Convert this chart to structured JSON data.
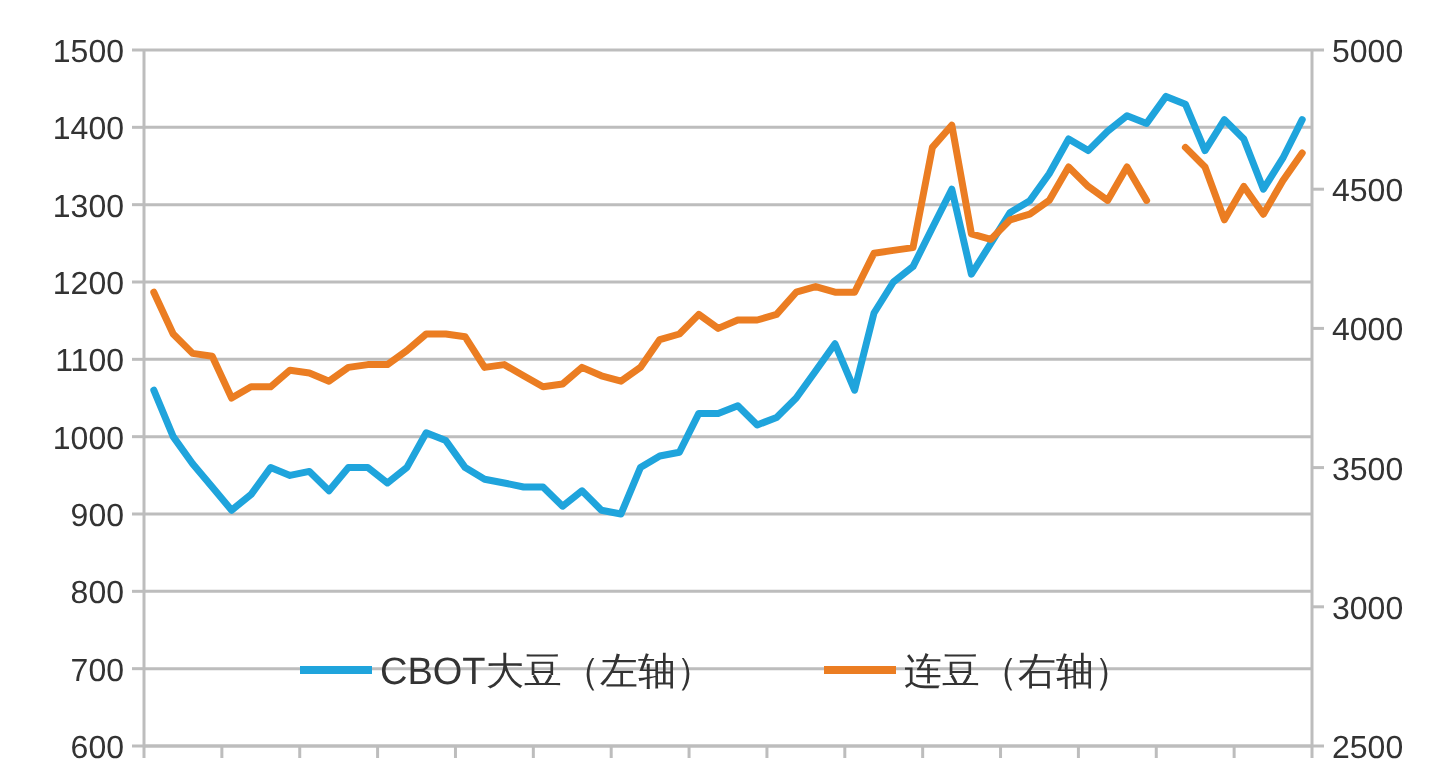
{
  "chart_data": {
    "type": "line",
    "categories": [
      null,
      null,
      null,
      null,
      null,
      null,
      null,
      null,
      null,
      null,
      null,
      null,
      null,
      null,
      null,
      null,
      null,
      null,
      null,
      null,
      null,
      null,
      null,
      null,
      null,
      null,
      null,
      null,
      null,
      null,
      null,
      null,
      null,
      null,
      null,
      null,
      null,
      null,
      null,
      null,
      null,
      null,
      null,
      null,
      null,
      null,
      null,
      null,
      null,
      null,
      null,
      null,
      null,
      null,
      null,
      null,
      null,
      null,
      null,
      null
    ],
    "series": [
      {
        "name": "CBOT大豆（左轴）",
        "color": "#1fa4dc",
        "values": [
          1060,
          1000,
          965,
          935,
          905,
          925,
          960,
          950,
          955,
          930,
          960,
          960,
          940,
          960,
          1005,
          995,
          960,
          945,
          940,
          935,
          935,
          910,
          930,
          905,
          900,
          960,
          975,
          980,
          1030,
          1030,
          1040,
          1015,
          1025,
          1050,
          1085,
          1120,
          1060,
          1160,
          1200,
          1220,
          1270,
          1320,
          1210,
          1250,
          1290,
          1305,
          1340,
          1385,
          1370,
          1395,
          1415,
          1405,
          1440,
          1430,
          1370,
          1410,
          1385,
          1320,
          1360,
          1410
        ]
      },
      {
        "name": "连豆（右轴）",
        "color": "#eb7d22",
        "axis": "y2",
        "values": [
          4130,
          3980,
          3910,
          3900,
          3750,
          3790,
          3790,
          3850,
          3840,
          3810,
          3860,
          3870,
          3870,
          3920,
          3980,
          3980,
          3970,
          3860,
          3870,
          3830,
          3790,
          3800,
          3860,
          3830,
          3810,
          3860,
          3960,
          3980,
          4050,
          4000,
          4030,
          4030,
          4050,
          4130,
          4150,
          4130,
          4130,
          4270,
          4280,
          4290,
          4650,
          4730,
          4340,
          4320,
          4390,
          4410,
          4460,
          4580,
          4510,
          4460,
          4580,
          4460,
          null,
          4650,
          4580,
          4390,
          4510,
          4410,
          4530,
          4630
        ]
      }
    ],
    "ylim": [
      600,
      1500
    ],
    "yticks": [
      600,
      700,
      800,
      900,
      1000,
      1100,
      1200,
      1300,
      1400,
      1500
    ],
    "y2lim": [
      2500,
      5000
    ],
    "y2ticks": [
      2500,
      3000,
      3500,
      4000,
      4500,
      5000
    ],
    "grid": "y",
    "legend": "bottom"
  }
}
